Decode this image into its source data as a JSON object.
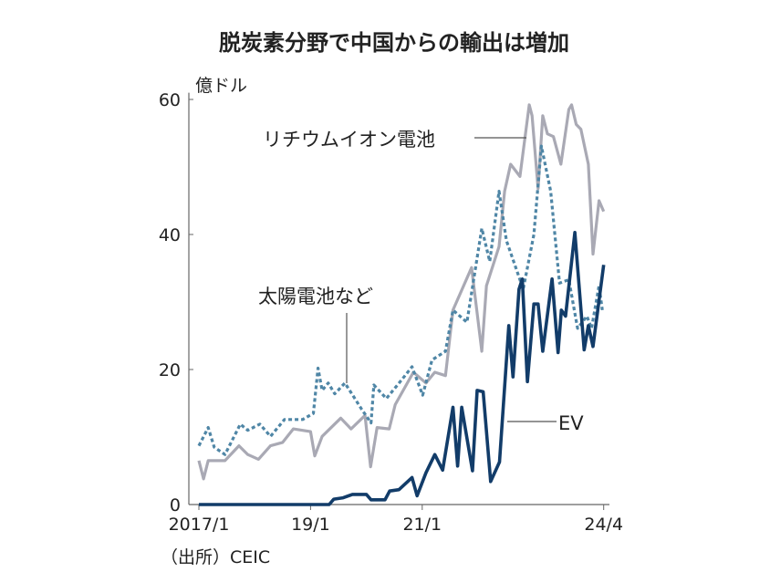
{
  "chart_data": {
    "type": "line",
    "title": "脱炭素分野で中国からの輸出は増加",
    "ylabel": "億ドル",
    "xlabel": "",
    "source": "（出所）CEIC",
    "ylim": [
      0,
      60
    ],
    "xlim_months_since_2017_1": [
      0,
      87
    ],
    "yticks": [
      0,
      20,
      40,
      60
    ],
    "xticks": [
      {
        "m": 0,
        "label": "2017/1"
      },
      {
        "m": 24,
        "label": "19/1"
      },
      {
        "m": 48,
        "label": "21/1"
      },
      {
        "m": 87,
        "label": "24/4"
      }
    ],
    "grid": false,
    "series": [
      {
        "name": "リチウムイオン電池",
        "color": "#a9a9b4",
        "style": "solid",
        "x": [
          0,
          1,
          2,
          5.6,
          8.6,
          10.5,
          12.8,
          15.4,
          18,
          20.3,
          24,
          24.9,
          26.5,
          30.5,
          32.7,
          35.7,
          36.9,
          38.3,
          40.9,
          42.2,
          46.1,
          48.8,
          50.7,
          53,
          54.6,
          58.6,
          60.8,
          61.8,
          64.5,
          65.7,
          67,
          69,
          71,
          71.6,
          72.9,
          73.9,
          74.9,
          76.2,
          77.8,
          79.5,
          80.1,
          81.1,
          82.1,
          83.7,
          84.7,
          86,
          87
        ],
        "values": [
          6.5,
          3.8,
          6.5,
          6.5,
          8.7,
          7.4,
          6.7,
          8.7,
          9.2,
          11.2,
          10.8,
          7.2,
          10.1,
          12.8,
          11.2,
          13.2,
          5.6,
          11.4,
          11.2,
          14.8,
          19.6,
          18,
          19.6,
          19.1,
          28.8,
          35.1,
          22.7,
          32.4,
          38.2,
          46.4,
          50.4,
          48.6,
          59.2,
          57.6,
          46.8,
          57.6,
          54.9,
          54.5,
          50.4,
          58.5,
          59.2,
          56.3,
          55.6,
          50.4,
          37.1,
          45,
          43.4
        ]
      },
      {
        "name": "太陽電池など",
        "color": "#4f86a6",
        "style": "dotted",
        "x": [
          0,
          2,
          3.3,
          5.6,
          8.9,
          10.5,
          13.1,
          15.4,
          18.4,
          22.3,
          24.6,
          25.6,
          26.5,
          27.8,
          29.2,
          31.4,
          35,
          37,
          37.6,
          40.3,
          43.5,
          45.8,
          48.1,
          50.1,
          53,
          54.6,
          57.6,
          60.8,
          62.5,
          64.5,
          66.1,
          69.7,
          72,
          73.6,
          75.6,
          77.5,
          79.5,
          81.4,
          83.4,
          84.4,
          86,
          86.7
        ],
        "values": [
          8.7,
          11.4,
          8.5,
          7.4,
          11.9,
          11,
          11.9,
          10.1,
          12.6,
          12.6,
          13.5,
          20.2,
          16.9,
          18,
          16.4,
          18,
          14.1,
          12.1,
          17.7,
          15.7,
          18.4,
          20.4,
          16.2,
          21.4,
          22.7,
          28.8,
          27,
          40.9,
          36,
          46.4,
          39.1,
          31.9,
          40,
          53.1,
          46.4,
          32.8,
          33.3,
          26.1,
          27.9,
          26.1,
          32.4,
          28.8
        ]
      },
      {
        "name": "EV",
        "color": "#123c69",
        "style": "solid",
        "x": [
          0,
          28,
          29,
          31,
          33,
          36,
          37,
          40,
          41,
          43,
          45.8,
          46.9,
          48.8,
          50.7,
          52.4,
          54.6,
          55.6,
          56.5,
          58.8,
          59.8,
          61.1,
          62.7,
          64.6,
          66.6,
          67.5,
          68.8,
          69.5,
          70.6,
          72,
          72.9,
          73.9,
          75.9,
          77.2,
          77.9,
          78.8,
          80.8,
          82.8,
          83.7,
          84.7,
          87
        ],
        "values": [
          0,
          0,
          0.8,
          1,
          1.5,
          1.5,
          0.7,
          0.7,
          2,
          2.2,
          4,
          1.3,
          4.7,
          7.4,
          5.1,
          14.4,
          5.7,
          14.4,
          5,
          16.9,
          16.7,
          3.4,
          6.3,
          26.5,
          18.9,
          31.9,
          33.4,
          18.2,
          29.7,
          29.7,
          22.7,
          33.4,
          22.5,
          28.8,
          27.9,
          40.3,
          22.9,
          26.5,
          23.4,
          35.5
        ]
      }
    ]
  }
}
